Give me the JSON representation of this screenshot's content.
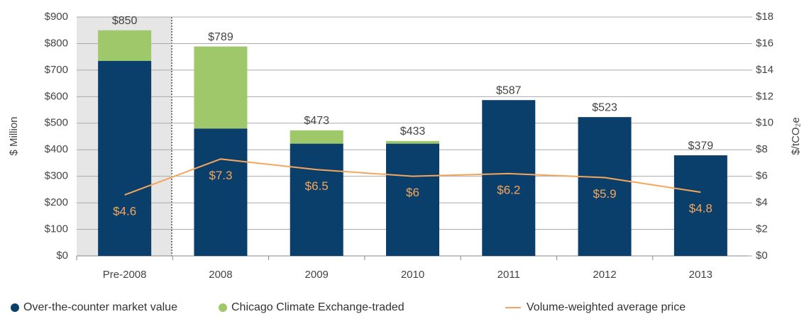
{
  "chart_data": {
    "type": "bar",
    "categories": [
      "Pre-2008",
      "2008",
      "2009",
      "2010",
      "2011",
      "2012",
      "2013"
    ],
    "series": [
      {
        "name": "Over-the-counter market value",
        "color": "#0b3f6b",
        "values": [
          735,
          480,
          423,
          423,
          587,
          523,
          379
        ]
      },
      {
        "name": "Chicago Climate Exchange-traded",
        "color": "#9ec86a",
        "values": [
          115,
          309,
          50,
          10,
          0,
          0,
          0
        ]
      },
      {
        "name": "Volume-weighted average price",
        "color": "#f5a65b",
        "type": "line",
        "axis": "y2",
        "values": [
          4.6,
          7.3,
          6.5,
          6,
          6.2,
          5.9,
          4.8
        ],
        "value_labels": [
          "$4.6",
          "$7.3",
          "$6.5",
          "$6",
          "$6.2",
          "$5.9",
          "$4.8"
        ]
      }
    ],
    "totals": [
      850,
      789,
      473,
      433,
      587,
      523,
      379
    ],
    "total_labels": [
      "$850",
      "$789",
      "$473",
      "$433",
      "$587",
      "$523",
      "$379"
    ],
    "ylabel": "$ Million",
    "y2label": "$/tCO₂e",
    "ylim": [
      0,
      900
    ],
    "yticks": [
      {
        "value": 0,
        "label": "$0"
      },
      {
        "value": 100,
        "label": "$100"
      },
      {
        "value": 200,
        "label": "$200"
      },
      {
        "value": 300,
        "label": "$300"
      },
      {
        "value": 400,
        "label": "$400"
      },
      {
        "value": 500,
        "label": "$500"
      },
      {
        "value": 600,
        "label": "$600"
      },
      {
        "value": 700,
        "label": "$700"
      },
      {
        "value": 800,
        "label": "$800"
      },
      {
        "value": 900,
        "label": "$900"
      }
    ],
    "y2lim": [
      0,
      18
    ],
    "y2ticks": [
      {
        "value": 0,
        "label": "$0"
      },
      {
        "value": 2,
        "label": "$2"
      },
      {
        "value": 4,
        "label": "$4"
      },
      {
        "value": 6,
        "label": "$6"
      },
      {
        "value": 8,
        "label": "$8"
      },
      {
        "value": 10,
        "label": "$10"
      },
      {
        "value": 12,
        "label": "$12"
      },
      {
        "value": 14,
        "label": "$14"
      },
      {
        "value": 16,
        "label": "$16"
      },
      {
        "value": 18,
        "label": "$18"
      }
    ],
    "grid": true
  }
}
